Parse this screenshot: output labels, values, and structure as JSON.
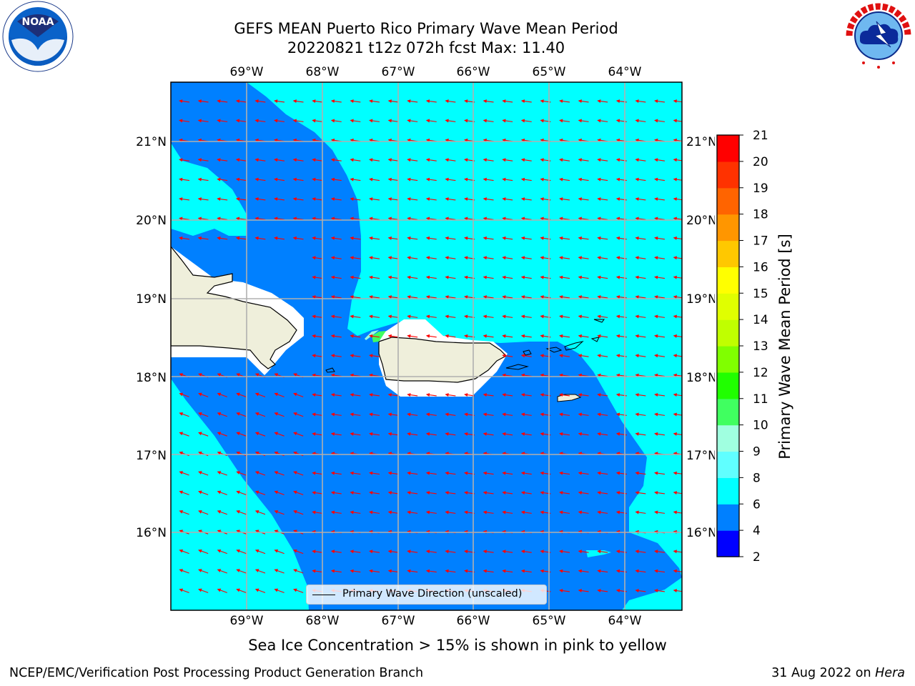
{
  "title": {
    "line1": "GEFS MEAN Puerto Rico Primary Wave Mean Period",
    "line2": "20220821 t12z 072h fcst   Max: 11.40"
  },
  "logos": {
    "left": "noaa-logo",
    "left_text": "NOAA",
    "right": "nws-logo"
  },
  "map": {
    "lon_labels": [
      "69°W",
      "68°W",
      "67°W",
      "66°W",
      "65°W",
      "64°W"
    ],
    "lat_labels": [
      "21°N",
      "20°N",
      "19°N",
      "18°N",
      "17°N",
      "16°N"
    ],
    "ocean_color_low": "#0080ff",
    "ocean_color_mid": "#00ffff",
    "land_color": "#efefdb",
    "arrow_color": "#ff0000",
    "legend_label": "Primary Wave Direction (unscaled)"
  },
  "colorbar": {
    "title": "Primary Wave Mean Period [s]",
    "ticks": [
      "2",
      "4",
      "6",
      "8",
      "9",
      "10",
      "11",
      "12",
      "13",
      "14",
      "15",
      "16",
      "17",
      "18",
      "19",
      "20",
      "21"
    ],
    "colors": [
      "#0000ff",
      "#0080ff",
      "#00ffff",
      "#60ffff",
      "#a0ffe0",
      "#40ff60",
      "#20ff00",
      "#80ff00",
      "#c0ff00",
      "#e0ff00",
      "#ffff00",
      "#ffc800",
      "#ff9600",
      "#ff6400",
      "#ff3200",
      "#ff0000"
    ]
  },
  "notes": {
    "sea_ice": "Sea Ice Concentration > 15% is shown in pink to yellow",
    "footer_left": "NCEP/EMC/Verification Post Processing Product Generation Branch",
    "footer_date": "31 Aug 2022 on ",
    "footer_machine": "Hera"
  }
}
